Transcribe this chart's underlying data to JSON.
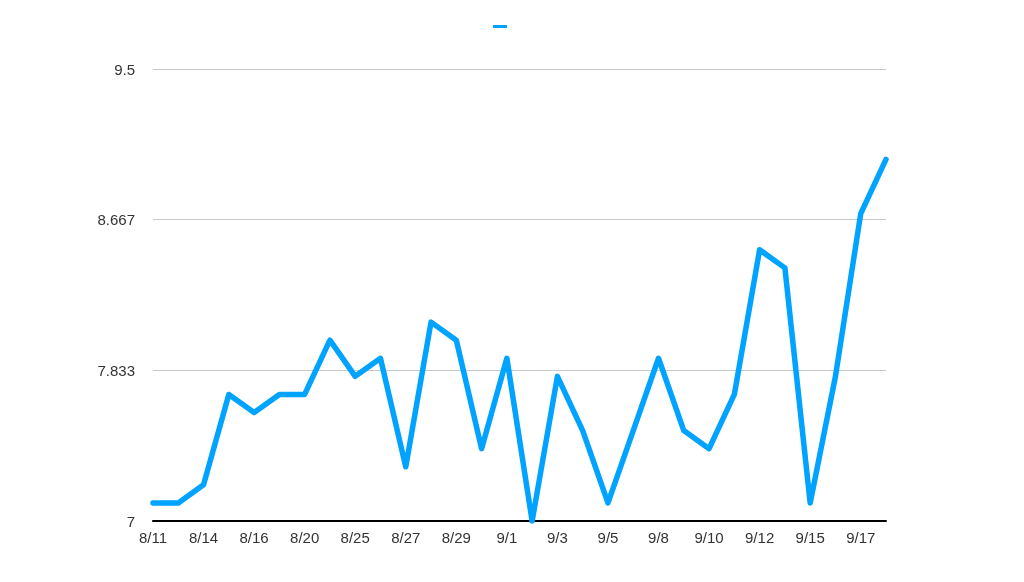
{
  "chart_data": {
    "type": "line",
    "categories": [
      "8/11",
      null,
      "8/14",
      null,
      "8/16",
      null,
      "8/20",
      null,
      "8/25",
      null,
      "8/27",
      null,
      "8/29",
      null,
      "9/1",
      null,
      "9/3",
      null,
      "9/5",
      null,
      "9/8",
      null,
      "9/10",
      null,
      "9/12",
      null,
      "9/15",
      null,
      "9/17",
      null
    ],
    "series": [
      {
        "color": "#00a3ff",
        "values": [
          7.1,
          7.1,
          7.2,
          7.7,
          7.6,
          7.7,
          7.7,
          8.0,
          7.8,
          7.9,
          7.3,
          8.1,
          8.0,
          7.4,
          7.9,
          7.0,
          7.8,
          7.5,
          7.1,
          7.5,
          7.9,
          7.5,
          7.4,
          7.7,
          8.5,
          8.4,
          7.1,
          7.8,
          8.7,
          9.0
        ]
      }
    ],
    "ylim": [
      7,
      9.5
    ],
    "yticks": [
      7,
      7.833,
      8.667,
      9.5
    ],
    "grid": "y",
    "marker": "none",
    "line_style": "solid"
  }
}
